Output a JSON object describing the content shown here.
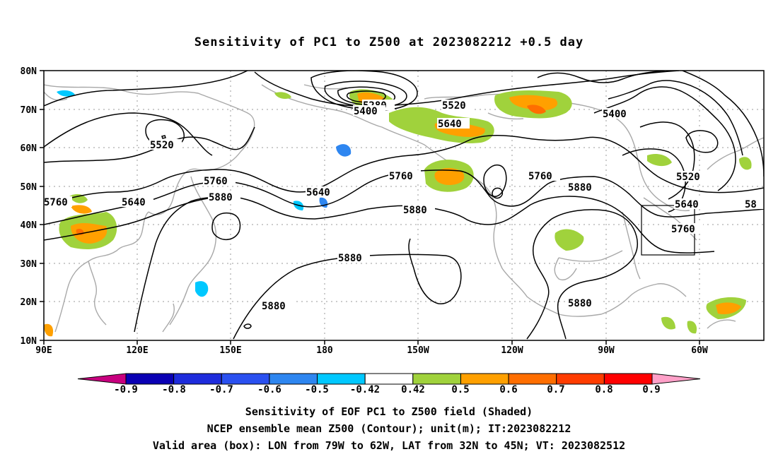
{
  "title": "Sensitivity of PC1 to Z500 at 2023082212 +0.5 day",
  "map": {
    "lat_labels": [
      "80N",
      "70N",
      "60N",
      "50N",
      "40N",
      "30N",
      "20N",
      "10N"
    ],
    "lon_labels": [
      "90E",
      "120E",
      "150E",
      "180",
      "150W",
      "120W",
      "90W",
      "60W"
    ],
    "contour_labels": [
      {
        "text": "5280"
      },
      {
        "text": "5400"
      },
      {
        "text": "5520"
      },
      {
        "text": "5400"
      },
      {
        "text": "5520"
      },
      {
        "text": "5640"
      },
      {
        "text": "5520"
      },
      {
        "text": "5640"
      },
      {
        "text": "5760"
      },
      {
        "text": "5880"
      },
      {
        "text": "5640"
      },
      {
        "text": "5760"
      },
      {
        "text": "5760"
      },
      {
        "text": "5880"
      },
      {
        "text": "5880"
      },
      {
        "text": "5640"
      },
      {
        "text": "5760"
      },
      {
        "text": "5880"
      },
      {
        "text": "5880"
      },
      {
        "text": "5880"
      },
      {
        "text": "5760"
      },
      {
        "text": "5880"
      },
      {
        "text": "5520"
      },
      {
        "text": "58"
      }
    ],
    "valid_box": {
      "lon_min": "79W",
      "lon_max": "62W",
      "lat_min": "32N",
      "lat_max": "45N"
    }
  },
  "colorbar": {
    "labels": [
      "-0.9",
      "-0.8",
      "-0.7",
      "-0.6",
      "-0.5",
      "-0.42",
      "0.42",
      "0.5",
      "0.6",
      "0.7",
      "0.8",
      "0.9"
    ],
    "colors": [
      "#c8007f",
      "#0a00b4",
      "#1e2cdc",
      "#2a50f0",
      "#2e86f0",
      "#00c8ff",
      "#ffffff",
      "#a0d23c",
      "#ffa000",
      "#ff6e00",
      "#ff3c00",
      "#ff0000",
      "#ffa0c8"
    ]
  },
  "captions": {
    "line1": "Sensitivity of EOF PC1 to Z500 field (Shaded)",
    "line2": "NCEP ensemble mean Z500 (Contour); unit(m); IT:2023082212",
    "line3": "Valid area (box): LON from 79W to 62W, LAT from 32N to 45N; VT: 2023082512"
  }
}
